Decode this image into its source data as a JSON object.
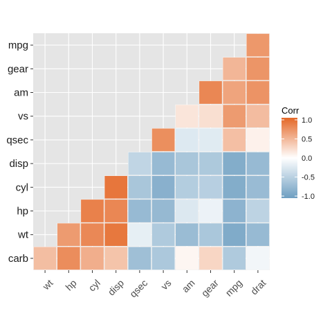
{
  "chart_data": {
    "type": "heatmap",
    "title": "",
    "xlabel": "",
    "ylabel": "",
    "x_categories": [
      "wt",
      "hp",
      "cyl",
      "disp",
      "qsec",
      "vs",
      "am",
      "gear",
      "mpg",
      "drat"
    ],
    "y_categories": [
      "carb",
      "wt",
      "hp",
      "cyl",
      "disp",
      "qsec",
      "vs",
      "am",
      "gear",
      "mpg"
    ],
    "cells": [
      {
        "x": "wt",
        "y": "carb",
        "value": 0.43
      },
      {
        "x": "hp",
        "y": "carb",
        "value": 0.75
      },
      {
        "x": "cyl",
        "y": "carb",
        "value": 0.53
      },
      {
        "x": "disp",
        "y": "carb",
        "value": 0.39
      },
      {
        "x": "qsec",
        "y": "carb",
        "value": -0.66
      },
      {
        "x": "vs",
        "y": "carb",
        "value": -0.57
      },
      {
        "x": "am",
        "y": "carb",
        "value": 0.06
      },
      {
        "x": "gear",
        "y": "carb",
        "value": 0.27
      },
      {
        "x": "mpg",
        "y": "carb",
        "value": -0.55
      },
      {
        "x": "drat",
        "y": "carb",
        "value": -0.09
      },
      {
        "x": "hp",
        "y": "wt",
        "value": 0.66
      },
      {
        "x": "cyl",
        "y": "wt",
        "value": 0.78
      },
      {
        "x": "disp",
        "y": "wt",
        "value": 0.89
      },
      {
        "x": "qsec",
        "y": "wt",
        "value": -0.17
      },
      {
        "x": "vs",
        "y": "wt",
        "value": -0.55
      },
      {
        "x": "am",
        "y": "wt",
        "value": -0.69
      },
      {
        "x": "gear",
        "y": "wt",
        "value": -0.58
      },
      {
        "x": "mpg",
        "y": "wt",
        "value": -0.87
      },
      {
        "x": "drat",
        "y": "wt",
        "value": -0.71
      },
      {
        "x": "cyl",
        "y": "hp",
        "value": 0.83
      },
      {
        "x": "disp",
        "y": "hp",
        "value": 0.79
      },
      {
        "x": "qsec",
        "y": "hp",
        "value": -0.71
      },
      {
        "x": "vs",
        "y": "hp",
        "value": -0.72
      },
      {
        "x": "am",
        "y": "hp",
        "value": -0.24
      },
      {
        "x": "gear",
        "y": "hp",
        "value": -0.13
      },
      {
        "x": "mpg",
        "y": "hp",
        "value": -0.78
      },
      {
        "x": "drat",
        "y": "hp",
        "value": -0.45
      },
      {
        "x": "disp",
        "y": "cyl",
        "value": 0.9
      },
      {
        "x": "qsec",
        "y": "cyl",
        "value": -0.59
      },
      {
        "x": "vs",
        "y": "cyl",
        "value": -0.81
      },
      {
        "x": "am",
        "y": "cyl",
        "value": -0.52
      },
      {
        "x": "gear",
        "y": "cyl",
        "value": -0.49
      },
      {
        "x": "mpg",
        "y": "cyl",
        "value": -0.85
      },
      {
        "x": "drat",
        "y": "cyl",
        "value": -0.7
      },
      {
        "x": "qsec",
        "y": "disp",
        "value": -0.43
      },
      {
        "x": "vs",
        "y": "disp",
        "value": -0.71
      },
      {
        "x": "am",
        "y": "disp",
        "value": -0.59
      },
      {
        "x": "gear",
        "y": "disp",
        "value": -0.56
      },
      {
        "x": "mpg",
        "y": "disp",
        "value": -0.85
      },
      {
        "x": "drat",
        "y": "disp",
        "value": -0.71
      },
      {
        "x": "vs",
        "y": "qsec",
        "value": 0.74
      },
      {
        "x": "am",
        "y": "qsec",
        "value": -0.23
      },
      {
        "x": "gear",
        "y": "qsec",
        "value": -0.21
      },
      {
        "x": "mpg",
        "y": "qsec",
        "value": 0.42
      },
      {
        "x": "drat",
        "y": "qsec",
        "value": 0.09
      },
      {
        "x": "am",
        "y": "vs",
        "value": 0.17
      },
      {
        "x": "gear",
        "y": "vs",
        "value": 0.21
      },
      {
        "x": "mpg",
        "y": "vs",
        "value": 0.66
      },
      {
        "x": "drat",
        "y": "vs",
        "value": 0.44
      },
      {
        "x": "gear",
        "y": "am",
        "value": 0.79
      },
      {
        "x": "mpg",
        "y": "am",
        "value": 0.6
      },
      {
        "x": "drat",
        "y": "am",
        "value": 0.71
      },
      {
        "x": "mpg",
        "y": "gear",
        "value": 0.48
      },
      {
        "x": "drat",
        "y": "gear",
        "value": 0.7
      },
      {
        "x": "drat",
        "y": "mpg",
        "value": 0.68
      }
    ],
    "value_range": [
      -1,
      1
    ],
    "grid": true,
    "legend": {
      "title": "Corr",
      "placement": "right",
      "ticks": [
        1.0,
        0.5,
        0.0,
        -0.5,
        -1.0
      ],
      "tick_labels": [
        "1.0",
        "0.5",
        "0.0",
        "-0.5",
        "-1.0"
      ],
      "colors": {
        "low": "#6d9ec1",
        "mid": "#ffffff",
        "high": "#e46726"
      }
    },
    "panel_background": "#e5e5e5",
    "grid_color": "#ffffff"
  }
}
